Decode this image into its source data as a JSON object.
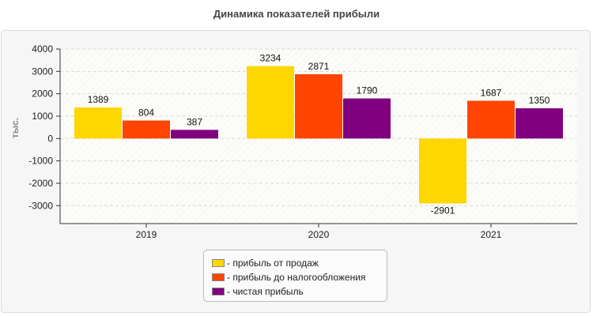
{
  "chart_data": {
    "type": "bar",
    "title": "Динамика показателей прибыли",
    "xlabel": "",
    "ylabel": "тыс.",
    "categories": [
      "2019",
      "2020",
      "2021"
    ],
    "ylim": [
      -3800,
      4000
    ],
    "yticks": [
      4000,
      3000,
      2000,
      1000,
      0,
      -1000,
      -2000,
      -3000
    ],
    "grid": true,
    "legend_position": "bottom-center",
    "series": [
      {
        "name": "- прибыль от продаж",
        "color": "#FFD700",
        "values": [
          1389,
          3234,
          -2901
        ],
        "labels": [
          "1389",
          "3234",
          "-2901"
        ]
      },
      {
        "name": "- прибыль до налогообложения",
        "color": "#FF4500",
        "values": [
          804,
          2871,
          1687
        ],
        "labels": [
          "804",
          "2871",
          "1687"
        ]
      },
      {
        "name": "- чистая прибыль",
        "color": "#800080",
        "values": [
          387,
          1790,
          1350
        ],
        "labels": [
          "387",
          "1790",
          "1350"
        ]
      }
    ]
  }
}
